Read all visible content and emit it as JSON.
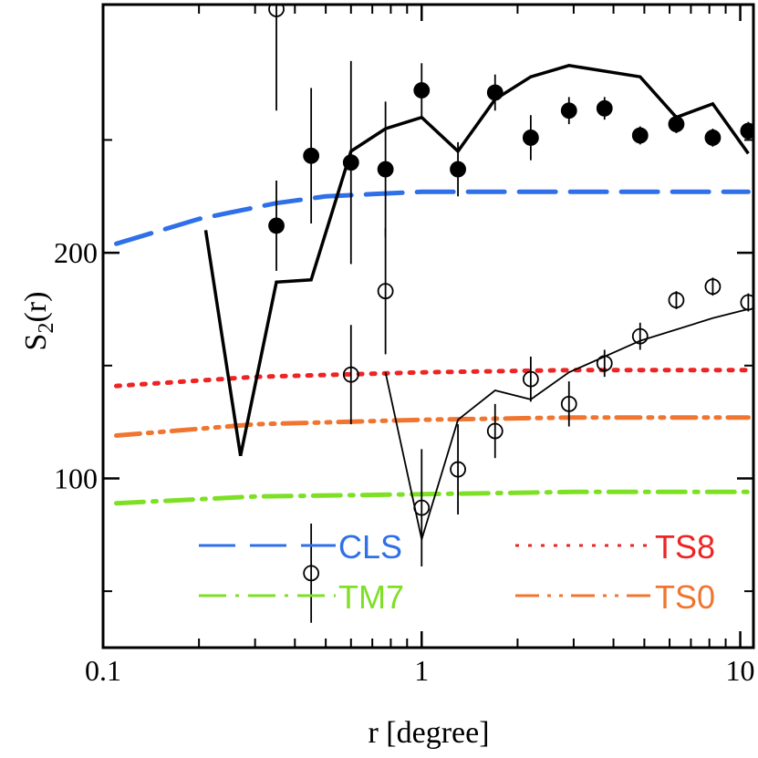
{
  "chart_data": {
    "type": "scatter",
    "xscale": "log",
    "xlim": [
      0.1,
      11
    ],
    "ylim": [
      25,
      310
    ],
    "xlabel": "r [degree]",
    "ylabel_main": "S",
    "ylabel_sub": "2",
    "ylabel_tail": "(r)",
    "x_ticks": [
      {
        "value": 0.1,
        "label": "0.1"
      },
      {
        "value": 1,
        "label": "1"
      },
      {
        "value": 10,
        "label": "10"
      }
    ],
    "y_ticks": [
      {
        "value": 100,
        "label": "100"
      },
      {
        "value": 200,
        "label": "200"
      }
    ],
    "y_minor_ticks": [
      50,
      150,
      250
    ],
    "filled_points": {
      "name": "filled circles",
      "x": [
        0.35,
        0.45,
        0.6,
        0.77,
        1.0,
        1.3,
        1.7,
        2.2,
        2.9,
        3.75,
        4.85,
        6.3,
        8.2,
        10.6
      ],
      "y": [
        212,
        243,
        240,
        237,
        272,
        237,
        271,
        251,
        263,
        264,
        252,
        257,
        251,
        254
      ],
      "err": [
        20,
        30,
        45,
        30,
        12,
        12,
        8,
        10,
        6,
        5,
        4,
        4,
        4,
        4
      ]
    },
    "open_points": {
      "name": "open circles",
      "x": [
        0.35,
        0.45,
        0.6,
        0.77,
        1.0,
        1.3,
        1.7,
        2.2,
        2.9,
        3.75,
        4.85,
        6.3,
        8.2,
        10.6
      ],
      "y": [
        308,
        58,
        146,
        183,
        87,
        104,
        121,
        144,
        133,
        151,
        163,
        179,
        185,
        178
      ],
      "err": [
        45,
        22,
        22,
        28,
        26,
        20,
        12,
        10,
        10,
        6,
        6,
        4,
        4,
        4
      ]
    },
    "thick_line": {
      "name": "model (thick)",
      "x": [
        0.21,
        0.27,
        0.35,
        0.45,
        0.6,
        0.77,
        1.0,
        1.3,
        1.7,
        2.2,
        2.9,
        4.85,
        6.3,
        8.2,
        10.6
      ],
      "y": [
        210,
        110,
        187,
        188,
        245,
        255,
        260,
        245,
        268,
        278,
        283,
        278,
        260,
        266,
        244
      ]
    },
    "thin_line": {
      "name": "model (thin)",
      "x": [
        0.77,
        1.0,
        1.3,
        1.7,
        2.2,
        2.9,
        4.85,
        8.2,
        10.6
      ],
      "y": [
        147,
        73,
        126,
        139,
        135,
        147,
        161,
        171,
        175
      ]
    },
    "series": [
      {
        "name": "CLS",
        "color": "#2f6fe8",
        "style": "dashed",
        "x": [
          0.11,
          0.2,
          0.35,
          0.5,
          0.7,
          1.0,
          2.0,
          4.0,
          10.6
        ],
        "y": [
          204,
          215,
          222,
          225,
          226,
          227,
          227,
          227,
          227
        ]
      },
      {
        "name": "TS8",
        "color": "#ee2424",
        "style": "dotted",
        "x": [
          0.11,
          0.3,
          1.0,
          3.0,
          10.6
        ],
        "y": [
          141,
          145,
          147,
          148,
          148
        ]
      },
      {
        "name": "TS0",
        "color": "#f07530",
        "style": "dash-dot-dot",
        "x": [
          0.11,
          0.3,
          1.0,
          3.0,
          10.6
        ],
        "y": [
          119,
          124,
          126,
          127,
          127
        ]
      },
      {
        "name": "TM7",
        "color": "#7ee024",
        "style": "dash-dot",
        "x": [
          0.11,
          0.3,
          1.0,
          3.0,
          10.6
        ],
        "y": [
          89,
          92,
          93,
          94,
          94
        ]
      }
    ],
    "legend": {
      "placement": "bottom",
      "items": [
        {
          "label": "CLS",
          "color": "#2f6fe8",
          "style": "dashed"
        },
        {
          "label": "TS8",
          "color": "#ee2424",
          "style": "dotted"
        },
        {
          "label": "TM7",
          "color": "#7ee024",
          "style": "dash-dot"
        },
        {
          "label": "TS0",
          "color": "#f07530",
          "style": "dash-dot-dot"
        }
      ]
    }
  }
}
